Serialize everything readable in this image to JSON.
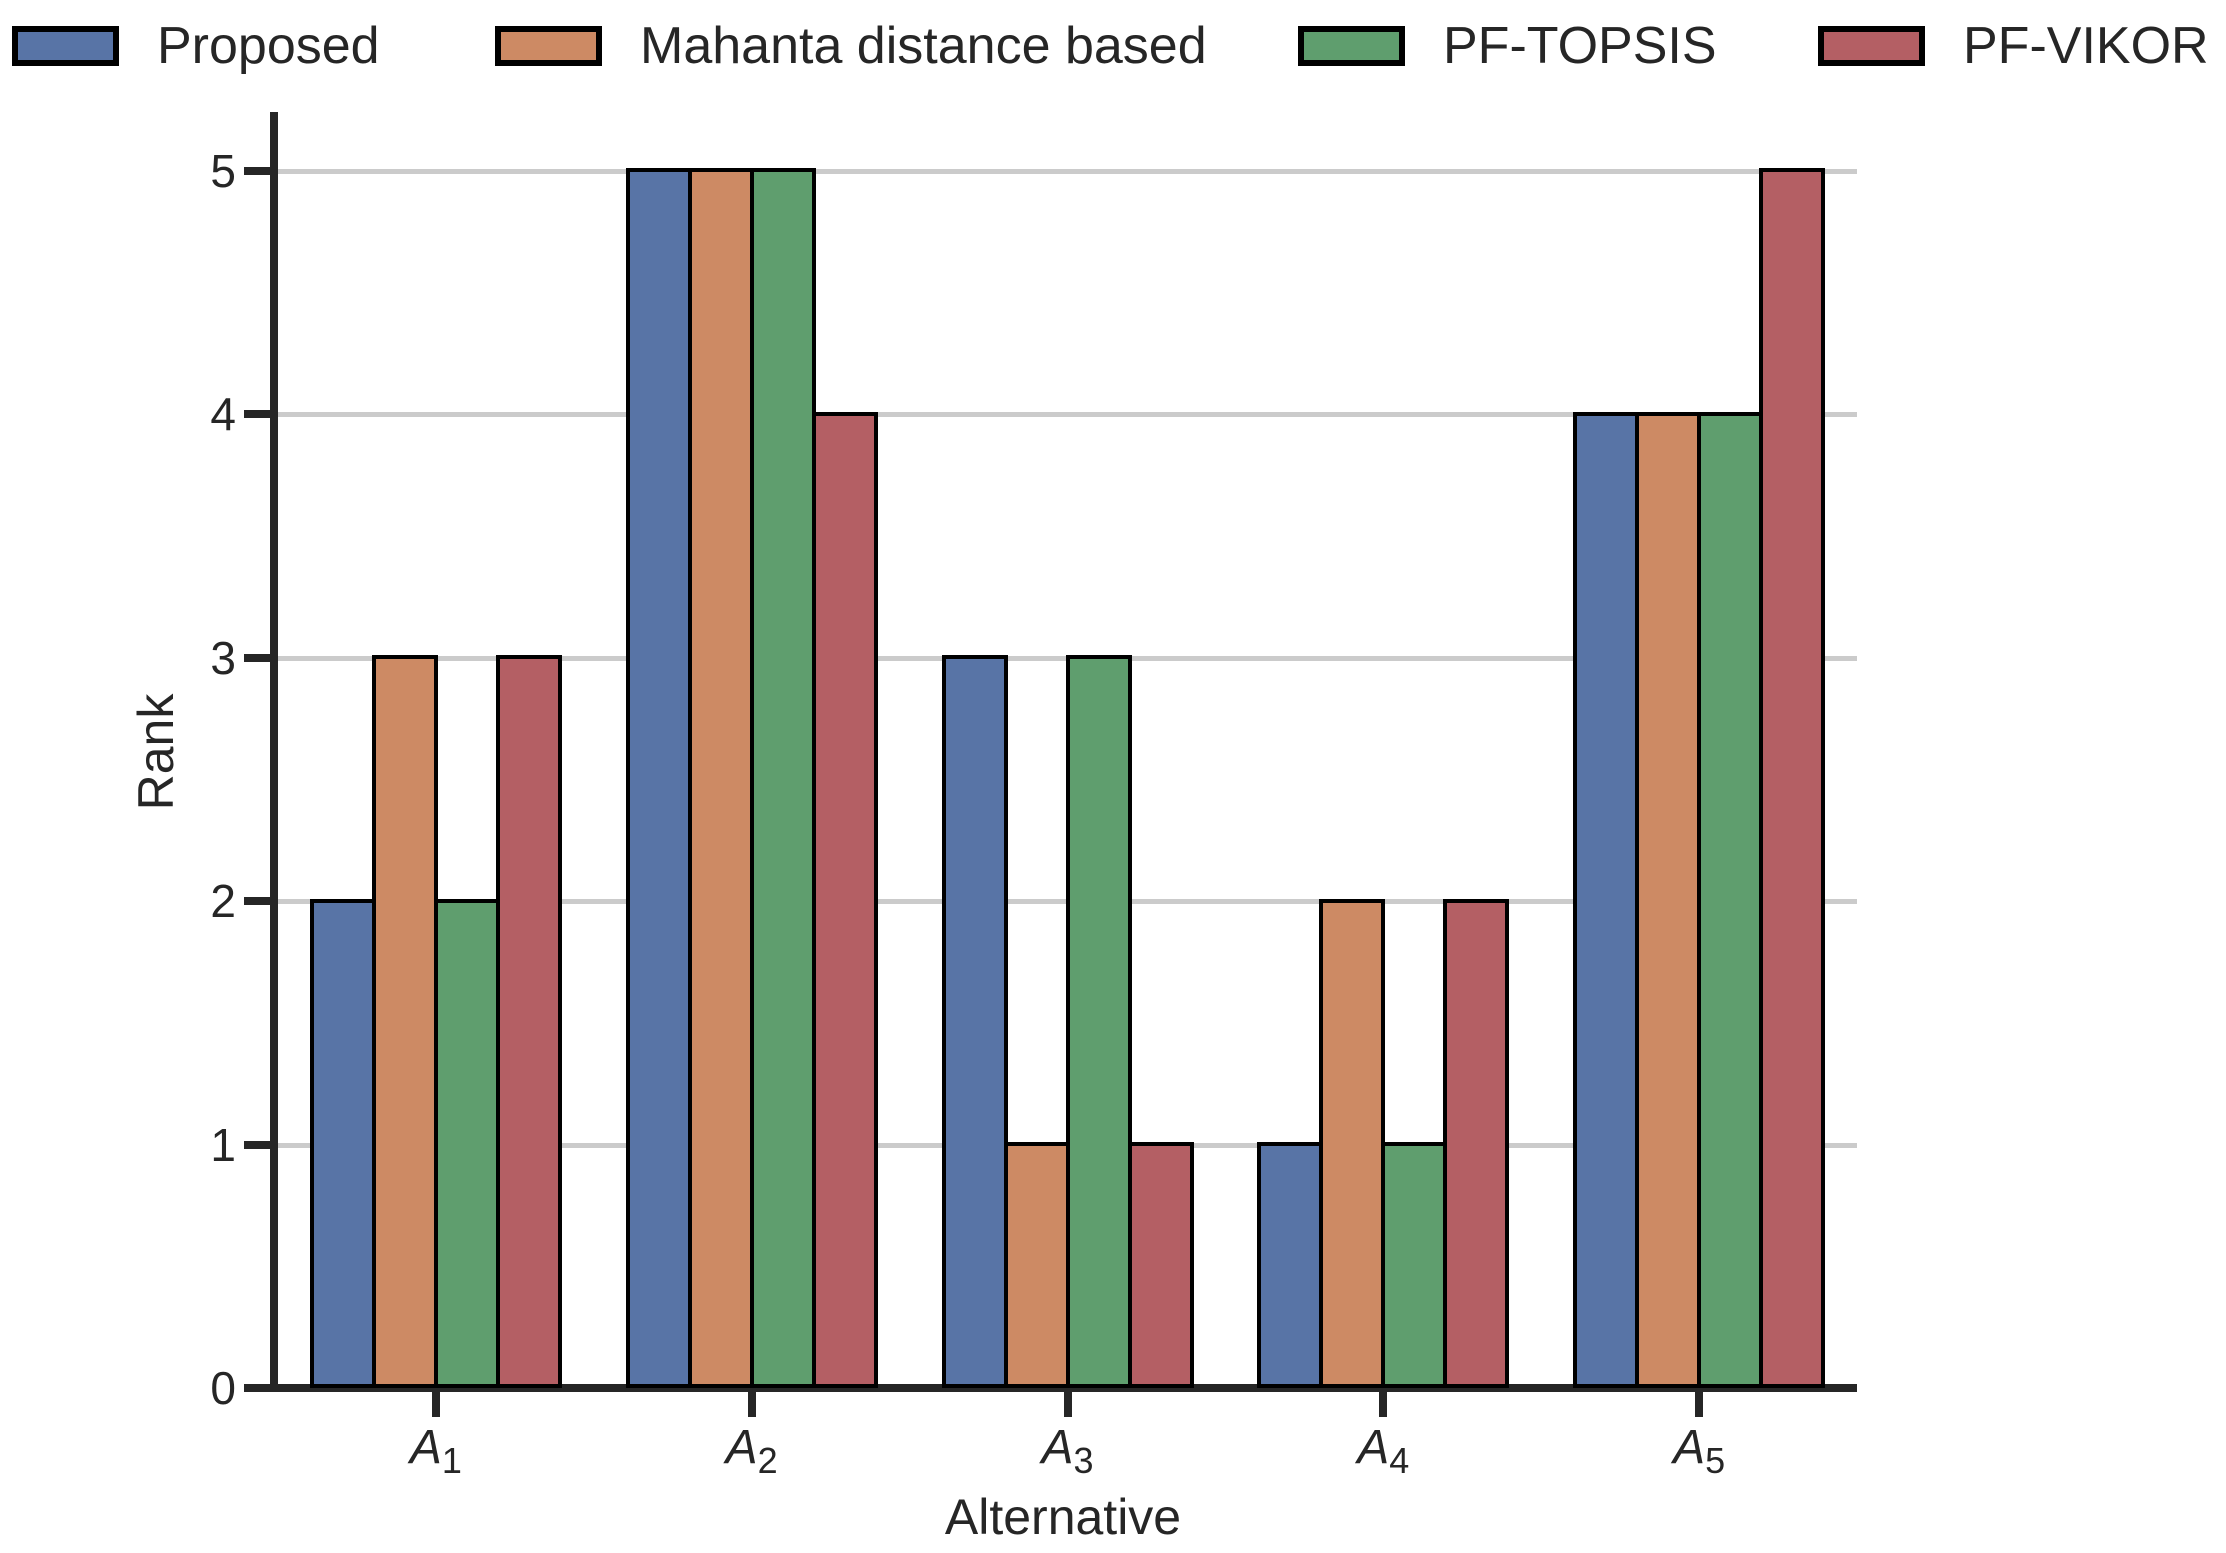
{
  "chart_data": {
    "type": "bar",
    "title": "",
    "xlabel": "Alternative",
    "ylabel": "Rank",
    "categories": [
      "A1",
      "A2",
      "A3",
      "A4",
      "A5"
    ],
    "series": [
      {
        "name": "Proposed",
        "color": "#5874A6",
        "values": [
          2,
          5,
          3,
          1,
          4
        ]
      },
      {
        "name": "Mahanta distance based",
        "color": "#CD8A64",
        "values": [
          3,
          5,
          1,
          2,
          4
        ]
      },
      {
        "name": "PF-TOPSIS",
        "color": "#5F9E6E",
        "values": [
          2,
          5,
          3,
          1,
          4
        ]
      },
      {
        "name": "PF-VIKOR",
        "color": "#B45F64",
        "values": [
          3,
          4,
          1,
          2,
          5
        ]
      }
    ],
    "yticks": [
      0,
      1,
      2,
      3,
      4,
      5
    ],
    "ylim": [
      0,
      5.24
    ],
    "grid": "horizontal",
    "gridline_color": "#cbcbcb",
    "axis_color": "#262626",
    "bar_edge_color": "#000000",
    "legend_position": "top"
  }
}
